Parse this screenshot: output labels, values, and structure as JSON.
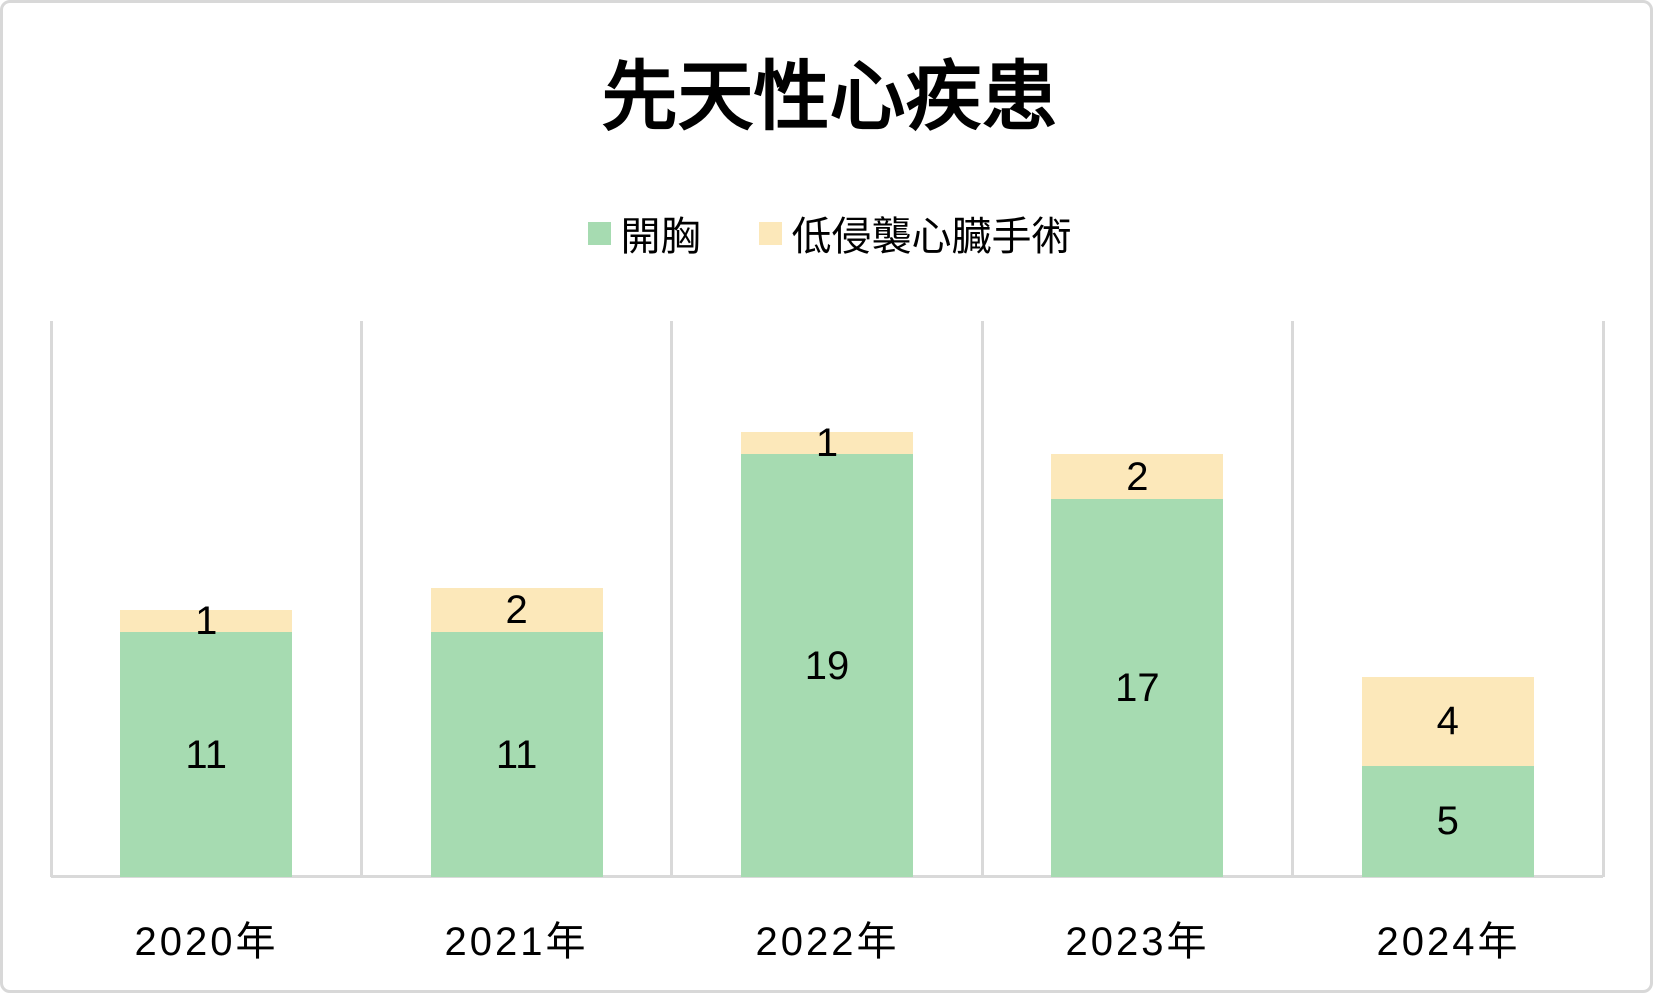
{
  "chart_data": {
    "type": "bar",
    "stacked": true,
    "title": "先天性心疾患",
    "categories": [
      "2020年",
      "2021年",
      "2022年",
      "2023年",
      "2024年"
    ],
    "series": [
      {
        "name": "開胸",
        "color": "#A6DBB1",
        "values": [
          11,
          11,
          19,
          17,
          5
        ]
      },
      {
        "name": "低侵襲心臓手術",
        "color": "#FCE8BA",
        "values": [
          1,
          2,
          1,
          2,
          4
        ]
      }
    ],
    "ylim": [
      0,
      25
    ],
    "y_axis_labels_visible": false,
    "grid": "vertical category separators only",
    "legend_position": "top-center",
    "data_labels": "value shown centered inside each segment",
    "colors": {
      "gridline": "#D9D9D9",
      "axis_line": "#D9D9D9",
      "label_text": "#000000",
      "border": "#D8D8D8",
      "background": "#FFFFFF"
    }
  }
}
